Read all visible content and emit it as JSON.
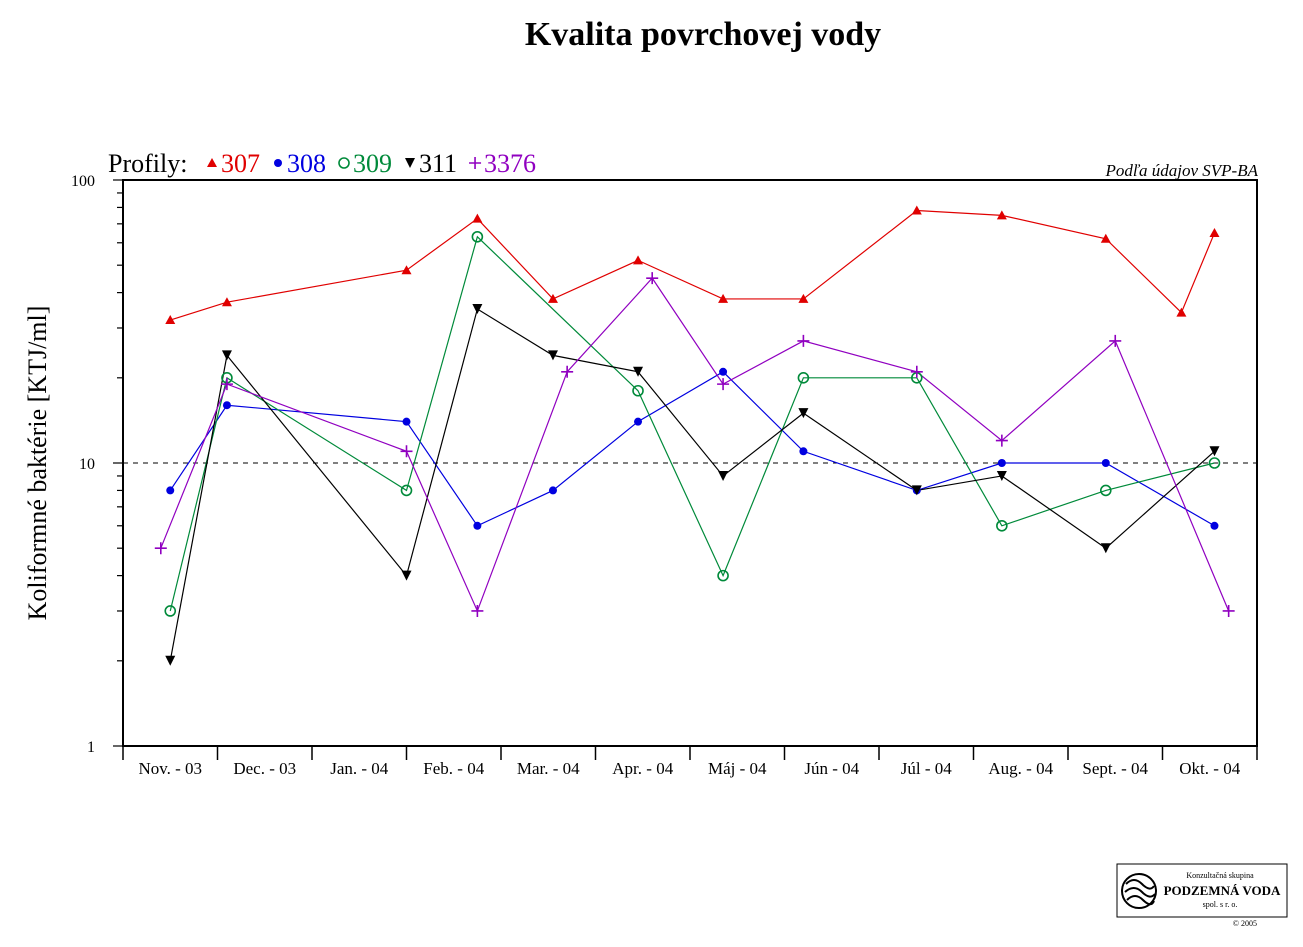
{
  "chart_data": {
    "type": "line",
    "title": "Kvalita povrchovej vody",
    "ylabel": "Koliformné baktérie [KTJ/ml]",
    "source_note": "Podľa údajov SVP-BA",
    "legend_prefix": "Profily:",
    "y_scale": "log",
    "ylim": [
      1,
      100
    ],
    "y_tick_labels": [
      "1",
      "10",
      "100"
    ],
    "reference_line": 10,
    "categories": [
      "Nov. - 03",
      "Dec. - 03",
      "Jan. - 04",
      "Feb. - 04",
      "Mar. - 04",
      "Apr. - 04",
      "Máj - 04",
      "Jún - 04",
      "Júl - 04",
      "Aug. - 04",
      "Sept. - 04",
      "Okt. - 04"
    ],
    "series": [
      {
        "name": "307",
        "color": "#e00000",
        "marker": "triangle-up",
        "points": [
          [
            0.5,
            32
          ],
          [
            1.1,
            37
          ],
          [
            3.0,
            48
          ],
          [
            3.75,
            73
          ],
          [
            4.55,
            38
          ],
          [
            5.45,
            52
          ],
          [
            6.35,
            38
          ],
          [
            7.2,
            38
          ],
          [
            8.4,
            78
          ],
          [
            9.3,
            75
          ],
          [
            10.4,
            62
          ],
          [
            11.2,
            34
          ],
          [
            11.55,
            65
          ]
        ]
      },
      {
        "name": "308",
        "color": "#0000e0",
        "marker": "circle",
        "points": [
          [
            0.5,
            8
          ],
          [
            1.1,
            16
          ],
          [
            3.0,
            14
          ],
          [
            3.75,
            6
          ],
          [
            4.55,
            8
          ],
          [
            5.45,
            14
          ],
          [
            6.35,
            21
          ],
          [
            7.2,
            11
          ],
          [
            8.4,
            8
          ],
          [
            9.3,
            10
          ],
          [
            10.4,
            10
          ],
          [
            11.55,
            6
          ]
        ]
      },
      {
        "name": "309",
        "color": "#008a3a",
        "marker": "circle-open",
        "points": [
          [
            0.5,
            3
          ],
          [
            1.1,
            20
          ],
          [
            3.0,
            8
          ],
          [
            3.75,
            63
          ],
          [
            5.45,
            18
          ],
          [
            6.35,
            4
          ],
          [
            7.2,
            20
          ],
          [
            8.4,
            20
          ],
          [
            9.3,
            6
          ],
          [
            10.4,
            8
          ],
          [
            11.55,
            10
          ]
        ]
      },
      {
        "name": "311",
        "color": "#000000",
        "marker": "triangle-down",
        "points": [
          [
            0.5,
            2
          ],
          [
            1.1,
            24
          ],
          [
            3.0,
            4
          ],
          [
            3.75,
            35
          ],
          [
            4.55,
            24
          ],
          [
            5.45,
            21
          ],
          [
            6.35,
            9
          ],
          [
            7.2,
            15
          ],
          [
            8.4,
            8
          ],
          [
            9.3,
            9
          ],
          [
            10.4,
            5
          ],
          [
            11.55,
            11
          ]
        ]
      },
      {
        "name": "3376",
        "color": "#9000c0",
        "marker": "plus",
        "points": [
          [
            0.4,
            5
          ],
          [
            1.1,
            19
          ],
          [
            3.0,
            11
          ],
          [
            3.75,
            3
          ],
          [
            4.7,
            21
          ],
          [
            5.6,
            45
          ],
          [
            6.35,
            19
          ],
          [
            7.2,
            27
          ],
          [
            8.4,
            21
          ],
          [
            9.3,
            12
          ],
          [
            10.5,
            27
          ],
          [
            11.7,
            3
          ]
        ]
      }
    ]
  },
  "logo": {
    "line1": "Konzultačná skupina",
    "line2": "PODZEMNÁ VODA",
    "line3": "spol. s r. o.",
    "copyright": "© 2005"
  }
}
